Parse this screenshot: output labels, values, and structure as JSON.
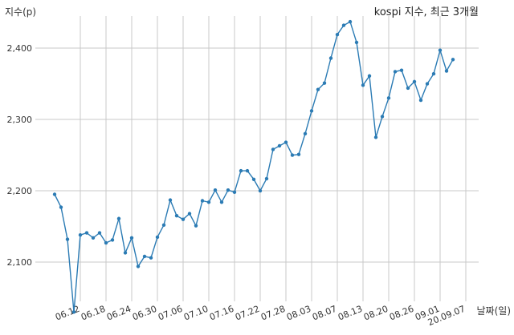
{
  "chart_data": {
    "type": "line",
    "title": "kospi 지수, 최근 3개월",
    "xlabel": "날짜(일)",
    "ylabel": "지수(p)",
    "y_ticks": [
      2100,
      2200,
      2300,
      2400
    ],
    "y_tick_labels": [
      "2,100",
      "2,200",
      "2,300",
      "2,400"
    ],
    "ylim": [
      2045,
      2445
    ],
    "grid": true,
    "x_tick_labels": [
      "06.12",
      "06.18",
      "06.24",
      "06.30",
      "07.06",
      "07.10",
      "07.16",
      "07.22",
      "07.28",
      "08.03",
      "08.07",
      "08.13",
      "08.20",
      "08.26",
      "09.01",
      "20.09.07"
    ],
    "x_tick_index": [
      4,
      8,
      12,
      16,
      20,
      24,
      28,
      32,
      36,
      40,
      44,
      48,
      52,
      56,
      60,
      64
    ],
    "series": [
      {
        "color": "#2b7bb4",
        "values": [
          2195,
          2177,
          2132,
          2030,
          2138,
          2141,
          2134,
          2141,
          2127,
          2131,
          2161,
          2113,
          2134,
          2094,
          2108,
          2106,
          2135,
          2152,
          2187,
          2165,
          2160,
          2168,
          2151,
          2186,
          2184,
          2201,
          2184,
          2201,
          2198,
          2228,
          2228,
          2216,
          2200,
          2217,
          2258,
          2263,
          2268,
          2250,
          2251,
          2280,
          2312,
          2342,
          2351,
          2386,
          2419,
          2432,
          2437,
          2408,
          2348,
          2361,
          2275,
          2304,
          2330,
          2367,
          2369,
          2344,
          2353,
          2327,
          2350,
          2364,
          2397,
          2368,
          2384
        ]
      }
    ]
  }
}
